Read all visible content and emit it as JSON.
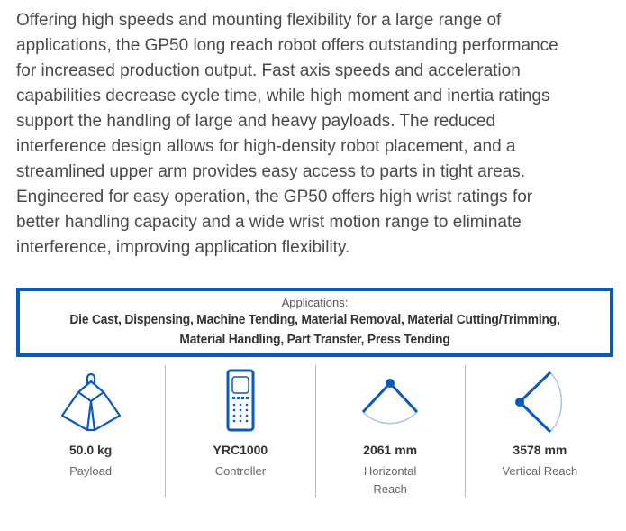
{
  "description_lines": [
    "Offering high speeds and mounting flexibility for a large range of",
    "applications, the GP50 long reach robot offers outstanding performance",
    "for increased production output. Fast axis speeds and acceleration",
    "capabilities decrease cycle time, while high moment and inertia ratings",
    "support the handling of large and heavy payloads. The reduced",
    "interference design allows for high-density robot placement, and a",
    "streamlined upper arm provides easy access to parts in tight areas.",
    "Engineered for easy operation, the GP50 offers high wrist ratings for",
    "better handling capacity and a wide wrist motion range to eliminate",
    "interference, improving application flexibility."
  ],
  "applications": {
    "label": "Applications:",
    "line1": "Die Cast, Dispensing, Machine Tending, Material Removal, Material Cutting/Trimming,",
    "line2": "Material Handling, Part Transfer, Press Tending"
  },
  "stats": [
    {
      "icon": "weight-icon",
      "value": "50.0 kg",
      "label": "Payload"
    },
    {
      "icon": "controller-icon",
      "value": "YRC1000",
      "label": "Controller"
    },
    {
      "icon": "horizontal-reach-icon",
      "value": "2061 mm",
      "label": "Horizontal Reach"
    },
    {
      "icon": "vertical-reach-icon",
      "value": "3578 mm",
      "label": "Vertical Reach"
    }
  ],
  "colors": {
    "accent": "#0c5ab8",
    "text": "#4a4a4a"
  }
}
